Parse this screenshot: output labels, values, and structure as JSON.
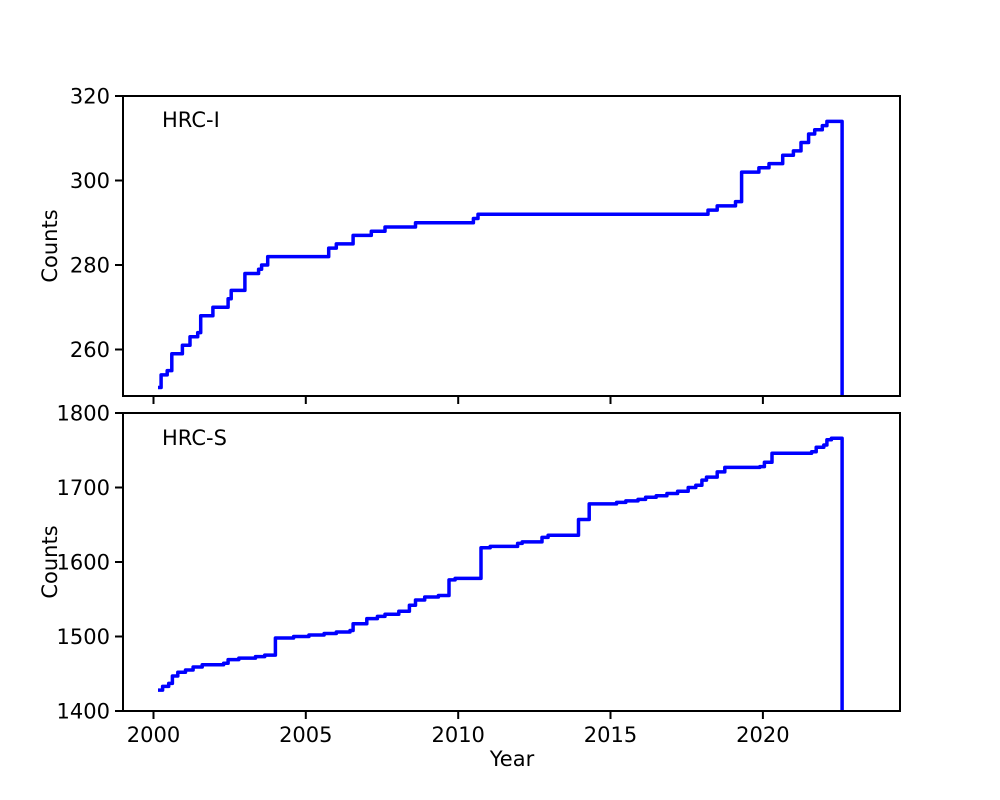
{
  "figure": {
    "background": "#ffffff",
    "axis_color": "#000000"
  },
  "chart_data": {
    "type": "line",
    "subtype": "step-post",
    "title": "",
    "xlabel": "Year",
    "grid": false,
    "legend": "none",
    "xlim": [
      1999.0,
      2024.5
    ],
    "x_ticks": [
      2000,
      2005,
      2010,
      2015,
      2020
    ],
    "line_color": "#0000ff",
    "panels": [
      {
        "label": "HRC-I",
        "ylabel": "Counts",
        "ylim": [
          249,
          320
        ],
        "y_ticks": [
          260,
          280,
          300,
          320
        ],
        "drop_to_baseline_at_end": true,
        "points": [
          [
            2000.15,
            251
          ],
          [
            2000.25,
            254
          ],
          [
            2000.45,
            255
          ],
          [
            2000.6,
            259
          ],
          [
            2000.95,
            261
          ],
          [
            2001.2,
            263
          ],
          [
            2001.45,
            264
          ],
          [
            2001.55,
            268
          ],
          [
            2001.95,
            270
          ],
          [
            2002.45,
            272
          ],
          [
            2002.55,
            274
          ],
          [
            2003.0,
            278
          ],
          [
            2003.45,
            279
          ],
          [
            2003.55,
            280
          ],
          [
            2003.75,
            282
          ],
          [
            2005.75,
            284
          ],
          [
            2006.0,
            285
          ],
          [
            2006.55,
            287
          ],
          [
            2007.15,
            288
          ],
          [
            2007.6,
            289
          ],
          [
            2008.6,
            290
          ],
          [
            2010.5,
            291
          ],
          [
            2010.65,
            292
          ],
          [
            2018.2,
            293
          ],
          [
            2018.5,
            294
          ],
          [
            2019.1,
            295
          ],
          [
            2019.3,
            302
          ],
          [
            2019.87,
            303
          ],
          [
            2020.2,
            304
          ],
          [
            2020.65,
            306
          ],
          [
            2021.0,
            307
          ],
          [
            2021.25,
            309
          ],
          [
            2021.5,
            311
          ],
          [
            2021.7,
            312
          ],
          [
            2021.95,
            313
          ],
          [
            2022.1,
            314
          ],
          [
            2022.6,
            314
          ]
        ]
      },
      {
        "label": "HRC-S",
        "ylabel": "Counts",
        "ylim": [
          1400,
          1800
        ],
        "y_ticks": [
          1400,
          1500,
          1600,
          1700,
          1800
        ],
        "drop_to_baseline_at_end": true,
        "points": [
          [
            2000.15,
            1428
          ],
          [
            2000.3,
            1433
          ],
          [
            2000.5,
            1437
          ],
          [
            2000.62,
            1447
          ],
          [
            2000.8,
            1452
          ],
          [
            2001.05,
            1455
          ],
          [
            2001.3,
            1459
          ],
          [
            2001.6,
            1462
          ],
          [
            2002.3,
            1464
          ],
          [
            2002.45,
            1469
          ],
          [
            2002.8,
            1471
          ],
          [
            2003.35,
            1473
          ],
          [
            2003.65,
            1475
          ],
          [
            2004.0,
            1498
          ],
          [
            2004.6,
            1500
          ],
          [
            2005.1,
            1502
          ],
          [
            2005.6,
            1504
          ],
          [
            2006.0,
            1506
          ],
          [
            2006.45,
            1508
          ],
          [
            2006.55,
            1517
          ],
          [
            2007.0,
            1524
          ],
          [
            2007.35,
            1527
          ],
          [
            2007.6,
            1530
          ],
          [
            2008.05,
            1534
          ],
          [
            2008.4,
            1542
          ],
          [
            2008.6,
            1549
          ],
          [
            2008.9,
            1553
          ],
          [
            2009.35,
            1555
          ],
          [
            2009.7,
            1576
          ],
          [
            2009.9,
            1578
          ],
          [
            2010.75,
            1619
          ],
          [
            2011.05,
            1621
          ],
          [
            2011.95,
            1625
          ],
          [
            2012.1,
            1627
          ],
          [
            2012.75,
            1633
          ],
          [
            2012.95,
            1636
          ],
          [
            2013.95,
            1657
          ],
          [
            2014.3,
            1678
          ],
          [
            2015.2,
            1680
          ],
          [
            2015.5,
            1682
          ],
          [
            2015.9,
            1684
          ],
          [
            2016.15,
            1687
          ],
          [
            2016.5,
            1689
          ],
          [
            2016.85,
            1692
          ],
          [
            2017.2,
            1695
          ],
          [
            2017.55,
            1700
          ],
          [
            2017.8,
            1703
          ],
          [
            2018.0,
            1710
          ],
          [
            2018.15,
            1714
          ],
          [
            2018.5,
            1721
          ],
          [
            2018.75,
            1727
          ],
          [
            2019.9,
            1728
          ],
          [
            2020.05,
            1734
          ],
          [
            2020.3,
            1746
          ],
          [
            2021.6,
            1748
          ],
          [
            2021.75,
            1754
          ],
          [
            2022.0,
            1757
          ],
          [
            2022.1,
            1764
          ],
          [
            2022.25,
            1766
          ],
          [
            2022.6,
            1766
          ]
        ]
      }
    ]
  }
}
